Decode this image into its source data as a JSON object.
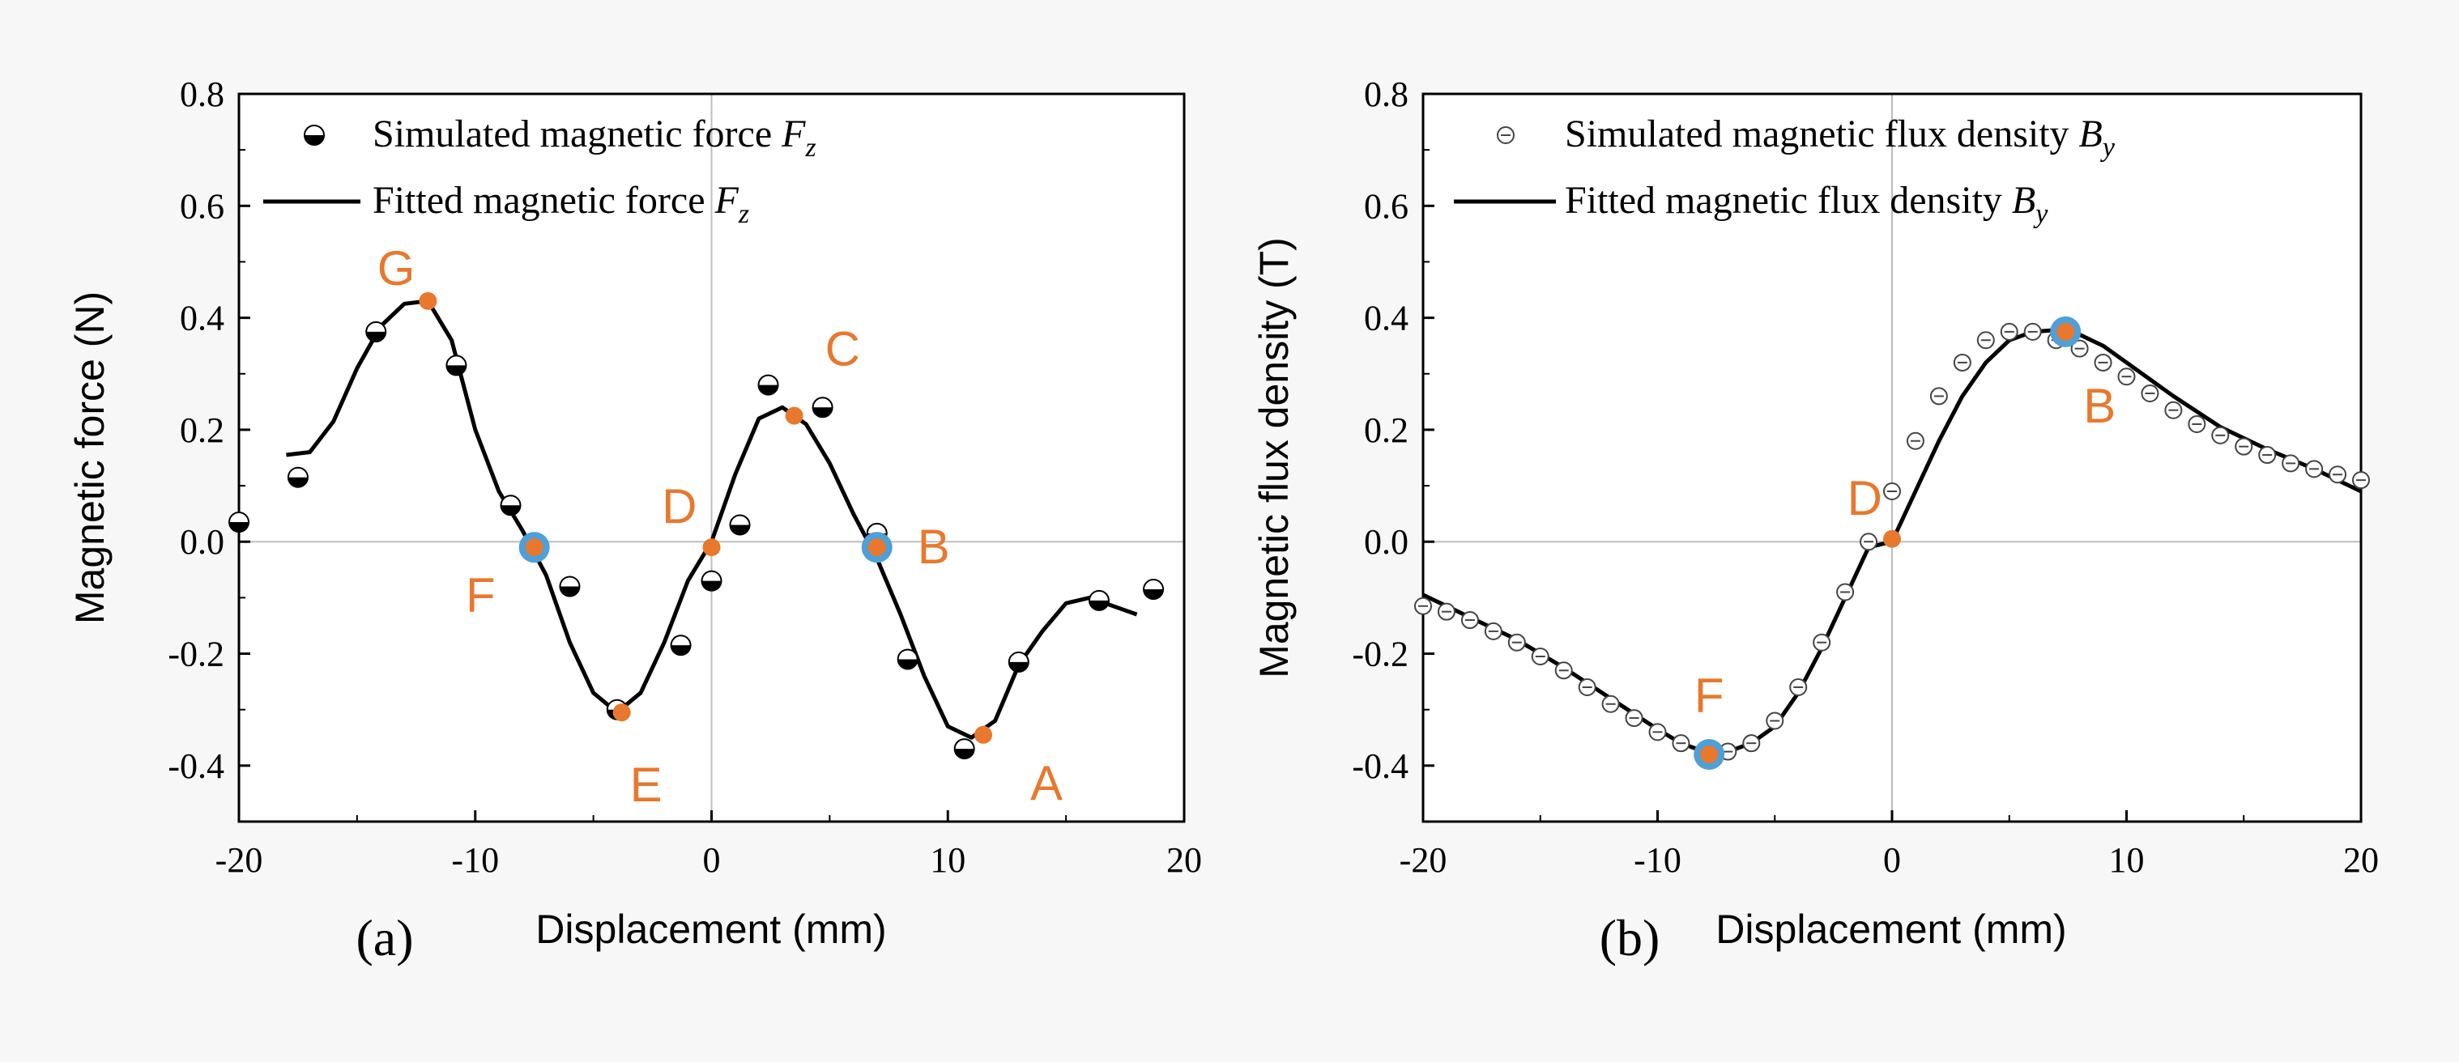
{
  "chart_data": [
    {
      "type": "scatter+line",
      "panel_label": "(a)",
      "xlabel": "Displacement (mm)",
      "ylabel": "Magnetic force (N)",
      "xlim": [
        -20,
        20
      ],
      "ylim": [
        -0.5,
        0.8
      ],
      "xticks": [
        -20,
        -10,
        0,
        10,
        20
      ],
      "yticks": [
        -0.4,
        -0.2,
        0.0,
        0.2,
        0.4,
        0.6,
        0.8
      ],
      "xtick_labels": [
        "-20",
        "-10",
        "0",
        "10",
        "20"
      ],
      "ytick_labels": [
        "-0.4",
        "-0.2",
        "0.0",
        "0.2",
        "0.4",
        "0.6",
        "0.8"
      ],
      "legend": {
        "simulated": {
          "text": "Simulated magnetic force ",
          "symbol": "F",
          "sub": "z"
        },
        "fitted": {
          "text": "Fitted magnetic force  ",
          "symbol": "F",
          "sub": "z"
        }
      },
      "simulated": {
        "x": [
          -20,
          -17.5,
          -14.2,
          -10.8,
          -8.5,
          -6,
          -4,
          -1.3,
          0,
          1.2,
          2.4,
          4.7,
          7,
          8.3,
          10.7,
          13,
          16.4,
          18.7
        ],
        "y": [
          0.035,
          0.115,
          0.375,
          0.315,
          0.065,
          -0.08,
          -0.3,
          -0.185,
          -0.07,
          0.03,
          0.28,
          0.24,
          0.015,
          -0.21,
          -0.37,
          -0.215,
          -0.105,
          -0.085
        ]
      },
      "fitted": {
        "x": [
          -18,
          -17,
          -16,
          -15,
          -14,
          -13,
          -12,
          -11,
          -10,
          -9,
          -8,
          -7,
          -6,
          -5,
          -4,
          -3,
          -2,
          -1,
          0,
          1,
          2,
          3,
          4,
          5,
          6,
          7,
          8,
          9,
          10,
          11,
          12,
          13,
          14,
          15,
          16,
          17,
          18
        ],
        "y": [
          0.155,
          0.16,
          0.215,
          0.31,
          0.385,
          0.425,
          0.43,
          0.36,
          0.2,
          0.09,
          0.02,
          -0.06,
          -0.18,
          -0.27,
          -0.305,
          -0.27,
          -0.18,
          -0.07,
          0.0,
          0.12,
          0.22,
          0.24,
          0.21,
          0.14,
          0.05,
          -0.03,
          -0.13,
          -0.24,
          -0.33,
          -0.35,
          -0.32,
          -0.22,
          -0.16,
          -0.11,
          -0.1,
          -0.115,
          -0.13
        ]
      },
      "points": [
        {
          "label": "G",
          "x": -12,
          "y": 0.43,
          "style": "orange"
        },
        {
          "label": "F",
          "x": -7.5,
          "y": -0.01,
          "style": "blue-ring"
        },
        {
          "label": "E",
          "x": -3.8,
          "y": -0.305,
          "style": "orange"
        },
        {
          "label": "D",
          "x": 0,
          "y": -0.01,
          "style": "orange"
        },
        {
          "label": "C",
          "x": 3.5,
          "y": 0.225,
          "style": "orange"
        },
        {
          "label": "B",
          "x": 7,
          "y": -0.01,
          "style": "blue-ring"
        },
        {
          "label": "A",
          "x": 11.5,
          "y": -0.345,
          "style": "orange"
        }
      ]
    },
    {
      "type": "scatter+line",
      "panel_label": "(b)",
      "xlabel": "Displacement (mm)",
      "ylabel": "Magnetic flux density (T)",
      "xlim": [
        -20,
        20
      ],
      "ylim": [
        -0.5,
        0.8
      ],
      "xticks": [
        -20,
        -10,
        0,
        10,
        20
      ],
      "yticks": [
        -0.4,
        -0.2,
        0.0,
        0.2,
        0.4,
        0.6,
        0.8
      ],
      "xtick_labels": [
        "-20",
        "-10",
        "0",
        "10",
        "20"
      ],
      "ytick_labels": [
        "-0.4",
        "-0.2",
        "0.0",
        "0.2",
        "0.4",
        "0.6",
        "0.8"
      ],
      "legend": {
        "simulated": {
          "text": "Simulated magnetic flux density ",
          "symbol": "B",
          "sub": "y"
        },
        "fitted": {
          "text": "Fitted magnetic flux density ",
          "symbol": "B",
          "sub": "y"
        }
      },
      "simulated": {
        "x": [
          -20,
          -19,
          -18,
          -17,
          -16,
          -15,
          -14,
          -13,
          -12,
          -11,
          -10,
          -9,
          -8,
          -7,
          -6,
          -5,
          -4,
          -3,
          -2,
          -1,
          0,
          1,
          2,
          3,
          4,
          5,
          6,
          7,
          8,
          9,
          10,
          11,
          12,
          13,
          14,
          15,
          16,
          17,
          18,
          19,
          20
        ],
        "y": [
          -0.115,
          -0.125,
          -0.14,
          -0.16,
          -0.18,
          -0.205,
          -0.23,
          -0.26,
          -0.29,
          -0.315,
          -0.34,
          -0.36,
          -0.375,
          -0.375,
          -0.36,
          -0.32,
          -0.26,
          -0.18,
          -0.09,
          0.0,
          0.09,
          0.18,
          0.26,
          0.32,
          0.36,
          0.375,
          0.375,
          0.36,
          0.345,
          0.32,
          0.295,
          0.265,
          0.235,
          0.21,
          0.19,
          0.17,
          0.155,
          0.14,
          0.13,
          0.12,
          0.11
        ]
      },
      "fitted": {
        "x": [
          -20,
          -18,
          -16,
          -14,
          -12,
          -10,
          -9,
          -8,
          -7,
          -6,
          -5,
          -4,
          -3,
          -2,
          -1,
          0,
          1,
          2,
          3,
          4,
          5,
          6,
          7,
          8,
          9,
          10,
          12,
          14,
          16,
          18,
          20
        ],
        "y": [
          -0.095,
          -0.135,
          -0.175,
          -0.225,
          -0.28,
          -0.335,
          -0.36,
          -0.375,
          -0.375,
          -0.36,
          -0.33,
          -0.27,
          -0.19,
          -0.1,
          -0.01,
          0.0,
          0.09,
          0.18,
          0.26,
          0.32,
          0.36,
          0.375,
          0.378,
          0.37,
          0.35,
          0.32,
          0.26,
          0.205,
          0.165,
          0.13,
          0.09
        ]
      },
      "points": [
        {
          "label": "F",
          "x": -7.8,
          "y": -0.38,
          "style": "blue-ring"
        },
        {
          "label": "D",
          "x": 0,
          "y": 0.005,
          "style": "orange"
        },
        {
          "label": "B",
          "x": 7.4,
          "y": 0.375,
          "style": "blue-ring"
        }
      ]
    }
  ]
}
